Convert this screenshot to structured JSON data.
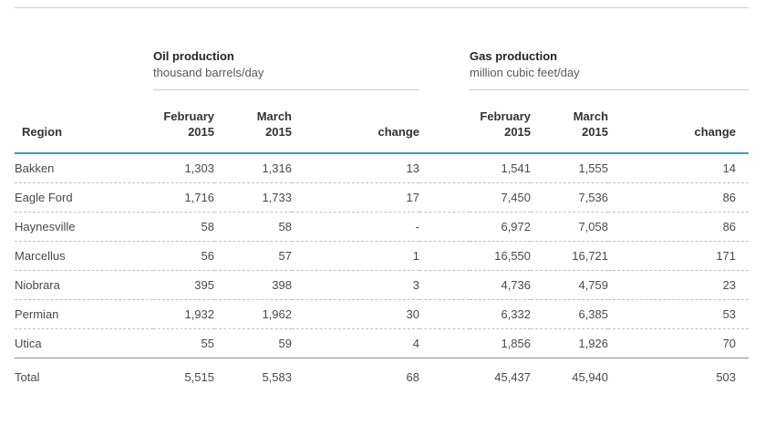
{
  "page": {
    "accent_blue": "#2f9cd6",
    "rule_gray": "#d0d0d0",
    "total_rule_gray": "#8f8f8f"
  },
  "table": {
    "region_header": "Region",
    "groups": [
      {
        "title": "Oil production",
        "subtitle": "thousand barrels/day"
      },
      {
        "title": "Gas production",
        "subtitle": "million cubic feet/day"
      }
    ],
    "col_headers": [
      "February\n2015",
      "March\n2015",
      "change"
    ],
    "rows": [
      [
        "Bakken",
        "1,303",
        "1,316",
        "13",
        "1,541",
        "1,555",
        "14"
      ],
      [
        "Eagle Ford",
        "1,716",
        "1,733",
        "17",
        "7,450",
        "7,536",
        "86"
      ],
      [
        "Haynesville",
        "58",
        "58",
        "-",
        "6,972",
        "7,058",
        "86"
      ],
      [
        "Marcellus",
        "56",
        "57",
        "1",
        "16,550",
        "16,721",
        "171"
      ],
      [
        "Niobrara",
        "395",
        "398",
        "3",
        "4,736",
        "4,759",
        "23"
      ],
      [
        "Permian",
        "1,932",
        "1,962",
        "30",
        "6,332",
        "6,385",
        "53"
      ],
      [
        "Utica",
        "55",
        "59",
        "4",
        "1,856",
        "1,926",
        "70"
      ]
    ],
    "total": [
      "Total",
      "5,515",
      "5,583",
      "68",
      "45,437",
      "45,940",
      "503"
    ]
  },
  "chart_data": {
    "type": "table",
    "column_groups": [
      {
        "title": "Oil production",
        "unit": "thousand barrels/day",
        "columns": [
          "February 2015",
          "March 2015",
          "change"
        ]
      },
      {
        "title": "Gas production",
        "unit": "million cubic feet/day",
        "columns": [
          "February 2015",
          "March 2015",
          "change"
        ]
      }
    ],
    "regions": [
      "Bakken",
      "Eagle Ford",
      "Haynesville",
      "Marcellus",
      "Niobrara",
      "Permian",
      "Utica"
    ],
    "oil_thousand_barrels_per_day": {
      "february_2015": [
        1303,
        1716,
        58,
        56,
        395,
        1932,
        55
      ],
      "march_2015": [
        1316,
        1733,
        58,
        57,
        398,
        1962,
        59
      ],
      "change": [
        13,
        17,
        0,
        1,
        3,
        30,
        4
      ]
    },
    "gas_million_cubic_feet_per_day": {
      "february_2015": [
        1541,
        7450,
        6972,
        16550,
        4736,
        6332,
        1856
      ],
      "march_2015": [
        1555,
        7536,
        7058,
        16721,
        4759,
        6385,
        1926
      ],
      "change": [
        14,
        86,
        86,
        171,
        23,
        53,
        70
      ]
    },
    "total": {
      "oil": {
        "february_2015": 5515,
        "march_2015": 5583,
        "change": 68
      },
      "gas": {
        "february_2015": 45437,
        "march_2015": 45940,
        "change": 503
      }
    }
  }
}
